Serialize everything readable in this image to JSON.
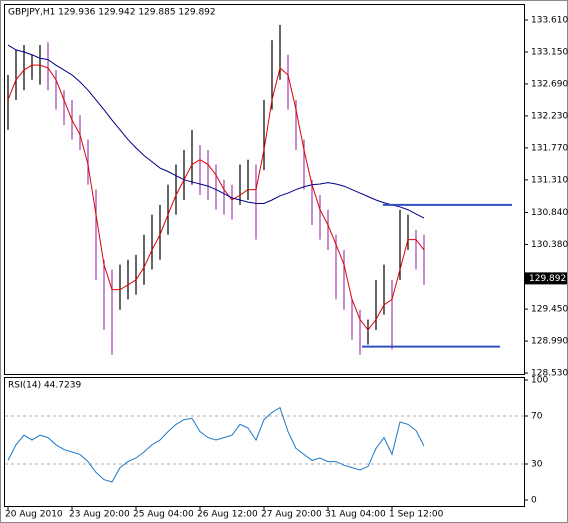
{
  "chart_data": [
    {
      "type": "hilo",
      "title": "GBPJPY,H1  129.936 129.942 129.885 129.892",
      "categories": [
        "20 Aug 2010",
        null,
        null,
        null,
        null,
        null,
        null,
        null,
        "23 Aug 20:00",
        null,
        null,
        null,
        null,
        null,
        null,
        null,
        "25 Aug 04:00",
        null,
        null,
        null,
        null,
        null,
        null,
        null,
        "26 Aug 12:00",
        null,
        null,
        null,
        null,
        null,
        null,
        null,
        "27 Aug 20:00",
        null,
        null,
        null,
        null,
        null,
        null,
        null,
        "31 Aug 04:00",
        null,
        null,
        null,
        null,
        null,
        null,
        null,
        "1 Sep 12:00",
        null,
        null,
        null,
        null
      ],
      "high": [
        132.82,
        133.18,
        133.25,
        133.11,
        133.25,
        133.29,
        132.89,
        132.6,
        132.46,
        132.24,
        131.89,
        131.17,
        130.16,
        130.02,
        130.09,
        130.16,
        130.23,
        130.52,
        130.81,
        130.95,
        131.24,
        131.53,
        131.74,
        132.03,
        131.81,
        131.74,
        131.53,
        131.31,
        131.24,
        131.53,
        131.6,
        131.53,
        132.46,
        133.32,
        133.54,
        133.11,
        132.46,
        131.89,
        131.31,
        131.09,
        130.88,
        130.52,
        130.3,
        129.59,
        129.44,
        129.3,
        129.87,
        130.09,
        129.87,
        130.88,
        130.81,
        130.59,
        130.52
      ],
      "low": [
        132.03,
        132.46,
        132.6,
        132.75,
        132.68,
        132.6,
        132.32,
        132.1,
        131.89,
        131.74,
        131.24,
        129.87,
        129.15,
        128.79,
        129.44,
        129.59,
        129.66,
        129.8,
        130.02,
        130.16,
        130.52,
        130.81,
        131.02,
        131.24,
        131.09,
        131.02,
        130.88,
        130.81,
        130.74,
        130.95,
        131.02,
        130.45,
        131.45,
        132.32,
        132.75,
        132.32,
        131.74,
        131.17,
        130.66,
        130.45,
        130.3,
        129.59,
        129.44,
        129.01,
        128.79,
        128.94,
        129.15,
        129.37,
        128.87,
        129.87,
        130.3,
        130.02,
        129.8
      ],
      "up_color": "#000000",
      "down_color": "#a040b0",
      "lines": [
        {
          "color": "#e00000",
          "values": [
            132.46,
            132.75,
            132.89,
            132.96,
            132.96,
            132.92,
            132.75,
            132.46,
            132.17,
            131.96,
            131.53,
            130.81,
            130.09,
            129.73,
            129.73,
            129.8,
            129.87,
            130.05,
            130.3,
            130.52,
            130.81,
            131.09,
            131.31,
            131.53,
            131.6,
            131.53,
            131.38,
            131.17,
            131.02,
            131.09,
            131.17,
            131.17,
            131.74,
            132.46,
            132.92,
            132.82,
            132.32,
            131.74,
            131.24,
            130.88,
            130.66,
            130.38,
            130.09,
            129.59,
            129.3,
            129.15,
            129.3,
            129.51,
            129.59,
            130.02,
            130.45,
            130.45,
            130.3
          ]
        },
        {
          "color": "#00008b",
          "values": [
            133.25,
            133.18,
            133.15,
            133.11,
            133.06,
            133.04,
            132.96,
            132.89,
            132.82,
            132.72,
            132.6,
            132.46,
            132.32,
            132.17,
            132.03,
            131.89,
            131.77,
            131.66,
            131.57,
            131.48,
            131.43,
            131.37,
            131.31,
            131.28,
            131.25,
            131.22,
            131.17,
            131.11,
            131.05,
            131.02,
            130.99,
            130.97,
            130.97,
            131.02,
            131.08,
            131.12,
            131.17,
            131.21,
            131.24,
            131.25,
            131.27,
            131.25,
            131.22,
            131.17,
            131.12,
            131.07,
            131.02,
            130.98,
            130.95,
            130.92,
            130.88,
            130.82,
            130.76
          ]
        }
      ],
      "levels": [
        130.95,
        128.91
      ],
      "level_color": "#3050c0",
      "last_price": {
        "value": 129.892,
        "label": "129.892"
      },
      "ylim": [
        128.516,
        133.826
      ],
      "yticks": [
        {
          "value": 133.61,
          "label": "133.610"
        },
        {
          "value": 133.15,
          "label": "133.150"
        },
        {
          "value": 132.69,
          "label": "132.690"
        },
        {
          "value": 132.23,
          "label": "132.230"
        },
        {
          "value": 131.77,
          "label": "131.770"
        },
        {
          "value": 131.31,
          "label": "131.310"
        },
        {
          "value": 130.84,
          "label": "130.840"
        },
        {
          "value": 130.38,
          "label": "130.380"
        },
        {
          "value": 129.45,
          "label": "129.450"
        },
        {
          "value": 128.99,
          "label": "128.990"
        },
        {
          "value": 128.53,
          "label": "128.530"
        }
      ]
    },
    {
      "type": "line",
      "title": "RSI(14) 44.7239",
      "color": "#1e78c8",
      "values": [
        33,
        46,
        54,
        50,
        54,
        52,
        46,
        42,
        40,
        38,
        32,
        23,
        17,
        15,
        27,
        32,
        35,
        40,
        46,
        50,
        57,
        63,
        67,
        68,
        57,
        52,
        50,
        52,
        54,
        63,
        60,
        50,
        67,
        73,
        77,
        57,
        43,
        38,
        33,
        35,
        32,
        32,
        29,
        27,
        25,
        28,
        43,
        52,
        38,
        65,
        63,
        58,
        45
      ],
      "ylim": [
        0,
        100
      ],
      "yticks": [
        0,
        30,
        70,
        100
      ],
      "levels": [
        30,
        70
      ]
    }
  ]
}
